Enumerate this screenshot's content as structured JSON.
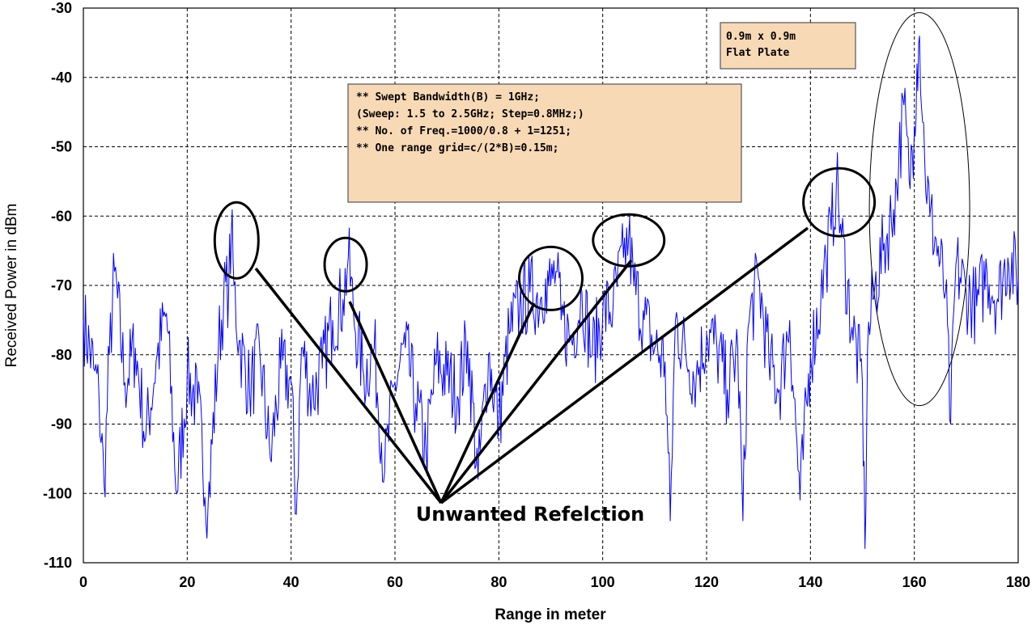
{
  "chart_data": {
    "type": "line",
    "xlabel": "Range in meter",
    "ylabel": "Received Power in dBm",
    "xlim": [
      0,
      180
    ],
    "ylim": [
      -110,
      -30
    ],
    "xticks": [
      0,
      20,
      40,
      60,
      80,
      100,
      120,
      140,
      160,
      180
    ],
    "yticks": [
      -30,
      -40,
      -50,
      -60,
      -70,
      -80,
      -90,
      -100,
      -110
    ],
    "grid": true,
    "series": [
      {
        "color": "#0000ff",
        "x": [
          0,
          2,
          3,
          4,
          5,
          6,
          8,
          10,
          12,
          14,
          16,
          18,
          20,
          22,
          24,
          26,
          27,
          28,
          28.5,
          29,
          30,
          32,
          34,
          36,
          38,
          40,
          41,
          42,
          44,
          46,
          48,
          50,
          51,
          52,
          54,
          56,
          58,
          60,
          62,
          64,
          66,
          68,
          70,
          72,
          74,
          76,
          78,
          80,
          82,
          84,
          86,
          88,
          89,
          90,
          91,
          92,
          94,
          96,
          98,
          100,
          102,
          104,
          105,
          106,
          108,
          110,
          112,
          113,
          114,
          116,
          118,
          120,
          122,
          124,
          126,
          127,
          128,
          130,
          132,
          134,
          136,
          138,
          140,
          142,
          143,
          144,
          145,
          146,
          148,
          150,
          150.5,
          151,
          152,
          154,
          156,
          157,
          158,
          159,
          160,
          160.5,
          161,
          162,
          163,
          164,
          166,
          167,
          168,
          170,
          172,
          174,
          176,
          178,
          180
        ],
        "values": [
          -75,
          -82,
          -86,
          -99,
          -80,
          -68,
          -84,
          -79,
          -92,
          -81,
          -74,
          -100,
          -83,
          -87,
          -102,
          -79,
          -72,
          -70,
          -62,
          -70,
          -78,
          -85,
          -80,
          -95,
          -82,
          -84,
          -103,
          -79,
          -86,
          -82,
          -75,
          -72,
          -66,
          -74,
          -83,
          -79,
          -97,
          -84,
          -79,
          -87,
          -94,
          -81,
          -83,
          -86,
          -78,
          -98,
          -80,
          -90,
          -77,
          -73,
          -71,
          -72,
          -69,
          -70,
          -68,
          -75,
          -78,
          -71,
          -80,
          -74,
          -73,
          -66,
          -63,
          -70,
          -75,
          -79,
          -81,
          -104,
          -75,
          -80,
          -83,
          -77,
          -79,
          -85,
          -79,
          -104,
          -76,
          -69,
          -81,
          -85,
          -75,
          -101,
          -80,
          -72,
          -66,
          -62,
          -55,
          -63,
          -76,
          -84,
          -108,
          -79,
          -72,
          -65,
          -59,
          -52,
          -44,
          -55,
          -47,
          -38,
          -34,
          -52,
          -60,
          -63,
          -71,
          -90,
          -67,
          -71,
          -73,
          -68,
          -72,
          -66,
          -69
        ]
      }
    ],
    "annotations": {
      "plate_note": [
        "0.9m x 0.9m",
        "Flat Plate"
      ],
      "sweep_note": [
        "** Swept Bandwidth(B) = 1GHz;",
        "(Sweep: 1.5 to 2.5GHz; Step=0.8MHz;)",
        "** No. of Freq.=1000/0.8 + 1=1251;",
        "** One range grid=c/(2*B)=0.15m;"
      ],
      "callout": "Unwanted Refelction"
    }
  }
}
